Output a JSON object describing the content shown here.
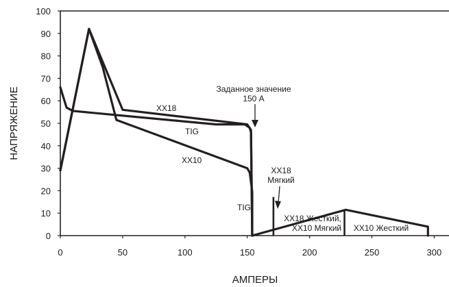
{
  "chart_data": {
    "type": "line",
    "xlabel": "АМПЕРЫ",
    "ylabel": "НАПРЯЖЕНИЕ",
    "xlim": [
      0,
      305
    ],
    "ylim": [
      0,
      100
    ],
    "xticks": [
      "0",
      "50",
      "100",
      "150",
      "200",
      "250",
      "300"
    ],
    "yticks": [
      "0",
      "10",
      "20",
      "30",
      "40",
      "50",
      "60",
      "70",
      "80",
      "90",
      "100"
    ],
    "grid": false,
    "series": [
      {
        "name": "XX18",
        "x": [
          0,
          23,
          50,
          150,
          153,
          154
        ],
        "y": [
          29,
          92,
          56,
          49.5,
          47,
          0
        ]
      },
      {
        "name": "TIG",
        "x": [
          0,
          5,
          10,
          125,
          148,
          152,
          153,
          154
        ],
        "y": [
          66,
          57,
          55.5,
          49.5,
          49.5,
          48,
          46,
          0
        ]
      },
      {
        "name": "XX10",
        "x": [
          0,
          23,
          34,
          45,
          150,
          152,
          154,
          154,
          229,
          295,
          295
        ],
        "y": [
          29,
          92,
          75,
          51.5,
          30,
          28,
          19.5,
          0,
          11.5,
          4,
          0
        ]
      }
    ],
    "dividers": [
      {
        "x": 171,
        "y": [
          0,
          17.2
        ]
      },
      {
        "x": 228,
        "y": [
          0,
          11.6
        ]
      }
    ],
    "annotations": {
      "xx18": "XX18",
      "tig_mid": "TIG",
      "xx10": "XX10",
      "setpoint_line1": "Заданное значение",
      "setpoint_line2": "150 А",
      "soft_line1": "XX18",
      "soft_line2": "Мягкий",
      "tig_low": "TIG",
      "hard_line1": "XX18 Жесткий,",
      "hard_line2": "XX10 Мягкий",
      "xx10_hard": "XX10 Жесткий"
    }
  }
}
